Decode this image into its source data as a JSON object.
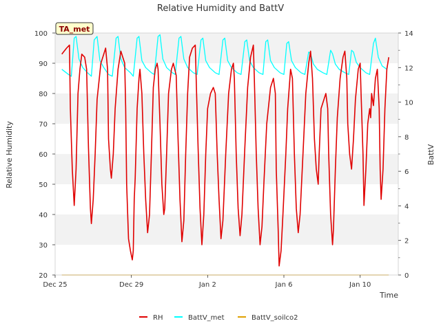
{
  "chart_data": {
    "type": "line",
    "title": "Relative Humidity and BattV",
    "xlabel": "Time",
    "ylabel_left": "Relative Humidity",
    "ylabel_right": "BattV",
    "ylim_left": [
      20,
      100
    ],
    "ylim_right": [
      0,
      14
    ],
    "xlim_days": [
      0,
      18
    ],
    "x_ticks": [
      {
        "label": "Dec 25",
        "day": 0
      },
      {
        "label": "Dec 29",
        "day": 4
      },
      {
        "label": "Jan 2",
        "day": 8
      },
      {
        "label": "Jan 6",
        "day": 12
      },
      {
        "label": "Jan 10",
        "day": 16
      }
    ],
    "y_ticks_left": [
      20,
      30,
      40,
      50,
      60,
      70,
      80,
      90,
      100
    ],
    "y_ticks_right": [
      0,
      2,
      4,
      6,
      8,
      10,
      12,
      14
    ],
    "grid": "horizontal bands",
    "annotation": "TA_met",
    "legend_placement": "bottom",
    "series": [
      {
        "name": "RH",
        "axis": "left",
        "color": "#e00000",
        "points": [
          [
            0.35,
            93
          ],
          [
            0.6,
            95
          ],
          [
            0.75,
            96
          ],
          [
            0.8,
            75
          ],
          [
            0.9,
            55
          ],
          [
            1.0,
            43
          ],
          [
            1.1,
            55
          ],
          [
            1.2,
            80
          ],
          [
            1.3,
            88
          ],
          [
            1.4,
            93
          ],
          [
            1.55,
            92
          ],
          [
            1.65,
            88
          ],
          [
            1.75,
            62
          ],
          [
            1.85,
            42
          ],
          [
            1.9,
            37
          ],
          [
            2.0,
            45
          ],
          [
            2.1,
            60
          ],
          [
            2.2,
            78
          ],
          [
            2.4,
            90
          ],
          [
            2.55,
            93
          ],
          [
            2.65,
            95
          ],
          [
            2.75,
            88
          ],
          [
            2.8,
            65
          ],
          [
            2.9,
            55
          ],
          [
            2.95,
            52
          ],
          [
            3.05,
            60
          ],
          [
            3.15,
            75
          ],
          [
            3.3,
            88
          ],
          [
            3.45,
            94
          ],
          [
            3.55,
            92
          ],
          [
            3.65,
            90
          ],
          [
            3.7,
            75
          ],
          [
            3.75,
            50
          ],
          [
            3.85,
            32
          ],
          [
            3.95,
            28
          ],
          [
            4.05,
            25
          ],
          [
            4.1,
            28
          ],
          [
            4.15,
            45
          ],
          [
            4.2,
            52
          ],
          [
            4.3,
            75
          ],
          [
            4.4,
            85
          ],
          [
            4.45,
            88
          ],
          [
            4.55,
            80
          ],
          [
            4.65,
            60
          ],
          [
            4.75,
            45
          ],
          [
            4.85,
            34
          ],
          [
            4.95,
            40
          ],
          [
            5.05,
            60
          ],
          [
            5.15,
            82
          ],
          [
            5.25,
            88
          ],
          [
            5.35,
            90
          ],
          [
            5.4,
            88
          ],
          [
            5.5,
            70
          ],
          [
            5.6,
            50
          ],
          [
            5.7,
            40
          ],
          [
            5.75,
            42
          ],
          [
            5.85,
            60
          ],
          [
            5.95,
            80
          ],
          [
            6.1,
            88
          ],
          [
            6.2,
            90
          ],
          [
            6.35,
            86
          ],
          [
            6.45,
            65
          ],
          [
            6.55,
            45
          ],
          [
            6.65,
            31
          ],
          [
            6.75,
            38
          ],
          [
            6.85,
            60
          ],
          [
            6.95,
            80
          ],
          [
            7.05,
            92
          ],
          [
            7.2,
            95
          ],
          [
            7.35,
            96
          ],
          [
            7.4,
            85
          ],
          [
            7.5,
            62
          ],
          [
            7.6,
            42
          ],
          [
            7.7,
            30
          ],
          [
            7.8,
            40
          ],
          [
            7.9,
            60
          ],
          [
            8.0,
            75
          ],
          [
            8.15,
            80
          ],
          [
            8.3,
            82
          ],
          [
            8.4,
            80
          ],
          [
            8.5,
            60
          ],
          [
            8.6,
            45
          ],
          [
            8.7,
            32
          ],
          [
            8.8,
            38
          ],
          [
            8.95,
            60
          ],
          [
            9.1,
            80
          ],
          [
            9.25,
            88
          ],
          [
            9.35,
            90
          ],
          [
            9.4,
            85
          ],
          [
            9.5,
            60
          ],
          [
            9.6,
            42
          ],
          [
            9.7,
            33
          ],
          [
            9.8,
            40
          ],
          [
            9.95,
            62
          ],
          [
            10.1,
            82
          ],
          [
            10.25,
            92
          ],
          [
            10.4,
            96
          ],
          [
            10.45,
            85
          ],
          [
            10.55,
            60
          ],
          [
            10.65,
            42
          ],
          [
            10.75,
            30
          ],
          [
            10.85,
            36
          ],
          [
            10.95,
            50
          ],
          [
            11.1,
            70
          ],
          [
            11.3,
            82
          ],
          [
            11.45,
            85
          ],
          [
            11.55,
            80
          ],
          [
            11.6,
            55
          ],
          [
            11.7,
            35
          ],
          [
            11.75,
            23
          ],
          [
            11.85,
            28
          ],
          [
            11.95,
            40
          ],
          [
            12.1,
            60
          ],
          [
            12.2,
            75
          ],
          [
            12.35,
            88
          ],
          [
            12.45,
            85
          ],
          [
            12.55,
            60
          ],
          [
            12.65,
            42
          ],
          [
            12.75,
            34
          ],
          [
            12.85,
            40
          ],
          [
            13.0,
            60
          ],
          [
            13.15,
            80
          ],
          [
            13.3,
            90
          ],
          [
            13.4,
            94
          ],
          [
            13.5,
            85
          ],
          [
            13.6,
            65
          ],
          [
            13.7,
            55
          ],
          [
            13.8,
            50
          ],
          [
            13.85,
            60
          ],
          [
            13.95,
            75
          ],
          [
            14.1,
            78
          ],
          [
            14.2,
            80
          ],
          [
            14.3,
            75
          ],
          [
            14.35,
            60
          ],
          [
            14.45,
            40
          ],
          [
            14.55,
            30
          ],
          [
            14.6,
            35
          ],
          [
            14.7,
            55
          ],
          [
            14.8,
            72
          ],
          [
            14.95,
            85
          ],
          [
            15.1,
            92
          ],
          [
            15.2,
            94
          ],
          [
            15.3,
            85
          ],
          [
            15.35,
            70
          ],
          [
            15.45,
            60
          ],
          [
            15.55,
            55
          ],
          [
            15.65,
            65
          ],
          [
            15.75,
            78
          ],
          [
            15.9,
            88
          ],
          [
            16.0,
            90
          ],
          [
            16.05,
            80
          ],
          [
            16.15,
            60
          ],
          [
            16.2,
            43
          ],
          [
            16.3,
            55
          ],
          [
            16.4,
            70
          ],
          [
            16.5,
            75
          ],
          [
            16.55,
            72
          ],
          [
            16.6,
            80
          ],
          [
            16.7,
            76
          ],
          [
            16.8,
            85
          ],
          [
            16.9,
            88
          ],
          [
            17.0,
            75
          ],
          [
            17.05,
            55
          ],
          [
            17.1,
            45
          ],
          [
            17.2,
            55
          ],
          [
            17.3,
            75
          ],
          [
            17.4,
            88
          ],
          [
            17.5,
            92
          ]
        ]
      },
      {
        "name": "BattV_met",
        "axis": "right",
        "color": "#00ffff",
        "points": [
          [
            0.35,
            11.9
          ],
          [
            0.7,
            11.6
          ],
          [
            0.85,
            11.5
          ],
          [
            1.0,
            13.7
          ],
          [
            1.1,
            13.8
          ],
          [
            1.25,
            12.5
          ],
          [
            1.45,
            12.0
          ],
          [
            1.7,
            11.7
          ],
          [
            1.9,
            11.5
          ],
          [
            2.05,
            13.6
          ],
          [
            2.2,
            13.8
          ],
          [
            2.35,
            12.4
          ],
          [
            2.55,
            12.0
          ],
          [
            2.8,
            11.6
          ],
          [
            3.0,
            11.5
          ],
          [
            3.2,
            13.7
          ],
          [
            3.3,
            13.8
          ],
          [
            3.45,
            12.5
          ],
          [
            3.65,
            12.0
          ],
          [
            3.95,
            11.7
          ],
          [
            4.1,
            11.5
          ],
          [
            4.3,
            13.7
          ],
          [
            4.4,
            13.8
          ],
          [
            4.55,
            12.4
          ],
          [
            4.75,
            12.0
          ],
          [
            5.05,
            11.7
          ],
          [
            5.2,
            11.6
          ],
          [
            5.4,
            13.8
          ],
          [
            5.5,
            13.9
          ],
          [
            5.65,
            12.5
          ],
          [
            5.85,
            12.0
          ],
          [
            6.15,
            11.7
          ],
          [
            6.3,
            11.6
          ],
          [
            6.5,
            13.7
          ],
          [
            6.6,
            13.8
          ],
          [
            6.75,
            12.5
          ],
          [
            6.95,
            12.0
          ],
          [
            7.25,
            11.7
          ],
          [
            7.45,
            11.6
          ],
          [
            7.65,
            13.6
          ],
          [
            7.75,
            13.7
          ],
          [
            7.9,
            12.4
          ],
          [
            8.1,
            12.0
          ],
          [
            8.4,
            11.7
          ],
          [
            8.6,
            11.6
          ],
          [
            8.8,
            13.6
          ],
          [
            8.9,
            13.7
          ],
          [
            9.05,
            12.4
          ],
          [
            9.25,
            12.0
          ],
          [
            9.55,
            11.7
          ],
          [
            9.75,
            11.6
          ],
          [
            9.95,
            13.5
          ],
          [
            10.05,
            13.6
          ],
          [
            10.2,
            12.4
          ],
          [
            10.4,
            12.0
          ],
          [
            10.7,
            11.7
          ],
          [
            10.9,
            11.6
          ],
          [
            11.05,
            13.5
          ],
          [
            11.15,
            13.6
          ],
          [
            11.3,
            12.4
          ],
          [
            11.5,
            12.0
          ],
          [
            11.8,
            11.7
          ],
          [
            12.0,
            11.6
          ],
          [
            12.15,
            13.4
          ],
          [
            12.25,
            13.5
          ],
          [
            12.4,
            12.4
          ],
          [
            12.6,
            12.0
          ],
          [
            12.9,
            11.7
          ],
          [
            13.1,
            11.6
          ],
          [
            13.3,
            12.9
          ],
          [
            13.4,
            12.8
          ],
          [
            13.55,
            12.2
          ],
          [
            13.75,
            11.9
          ],
          [
            14.05,
            11.7
          ],
          [
            14.25,
            11.6
          ],
          [
            14.45,
            13.0
          ],
          [
            14.55,
            12.8
          ],
          [
            14.7,
            12.2
          ],
          [
            14.9,
            11.9
          ],
          [
            15.2,
            11.7
          ],
          [
            15.4,
            11.6
          ],
          [
            15.55,
            13.0
          ],
          [
            15.65,
            12.9
          ],
          [
            15.8,
            12.3
          ],
          [
            16.0,
            12.0
          ],
          [
            16.3,
            11.7
          ],
          [
            16.5,
            11.6
          ],
          [
            16.7,
            13.4
          ],
          [
            16.8,
            13.7
          ],
          [
            16.95,
            12.6
          ],
          [
            17.15,
            12.1
          ],
          [
            17.4,
            11.9
          ]
        ]
      },
      {
        "name": "BattV_soilco2",
        "axis": "right",
        "color": "#e0a000",
        "points": [
          [
            0.35,
            0
          ],
          [
            17.5,
            0
          ]
        ]
      }
    ]
  }
}
